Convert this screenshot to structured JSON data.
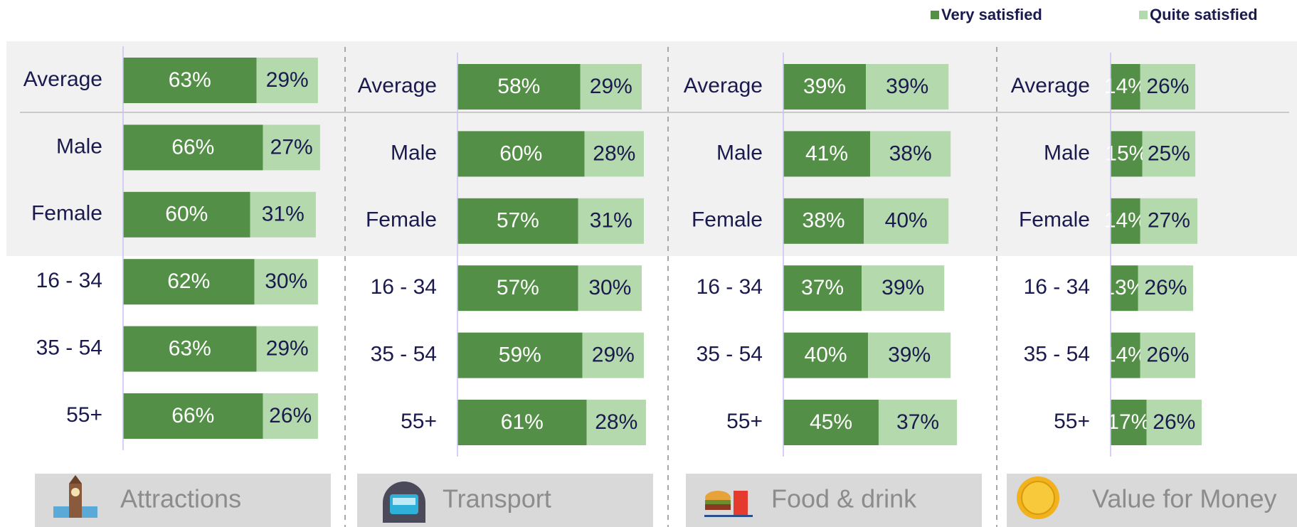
{
  "chart_data": [
    {
      "type": "stacked_bar_horizontal",
      "title": "Attractions",
      "categories": [
        "Average",
        "Male",
        "Female",
        "16 - 34",
        "35 - 54",
        "55+"
      ],
      "xlim": [
        0,
        100
      ],
      "series": [
        {
          "name": "Very satisfied",
          "color": "#548f47",
          "values": [
            63,
            66,
            60,
            62,
            63,
            66
          ],
          "value_labels": [
            "63%",
            "66%",
            "60%",
            "62%",
            "63%",
            "66%"
          ]
        },
        {
          "name": "Quite satisfied",
          "color": "#b4d9ac",
          "values": [
            29,
            27,
            31,
            30,
            29,
            26
          ],
          "value_labels": [
            "29%",
            "27%",
            "31%",
            "30%",
            "29%",
            "26%"
          ]
        }
      ]
    },
    {
      "type": "stacked_bar_horizontal",
      "title": "Transport",
      "categories": [
        "Average",
        "Male",
        "Female",
        "16 - 34",
        "35 - 54",
        "55+"
      ],
      "xlim": [
        0,
        100
      ],
      "series": [
        {
          "color": "#548f47",
          "values": [
            58,
            60,
            57,
            57,
            59,
            61
          ],
          "value_labels": [
            "58%",
            "60%",
            "57%",
            "57%",
            "59%",
            "61%"
          ]
        },
        {
          "color": "#b4d9ac",
          "values": [
            29,
            28,
            31,
            30,
            29,
            28
          ],
          "value_labels": [
            "29%",
            "28%",
            "31%",
            "30%",
            "29%",
            "28%"
          ]
        }
      ]
    },
    {
      "type": "stacked_bar_horizontal",
      "title": "Food & drink",
      "categories": [
        "Average",
        "Male",
        "Female",
        "16 - 34",
        "35 - 54",
        "55+"
      ],
      "xlim": [
        0,
        100
      ],
      "series": [
        {
          "color": "#548f47",
          "values": [
            39,
            41,
            38,
            37,
            40,
            45
          ],
          "value_labels": [
            "39%",
            "41%",
            "38%",
            "37%",
            "40%",
            "45%"
          ]
        },
        {
          "color": "#b4d9ac",
          "values": [
            39,
            38,
            40,
            39,
            39,
            37
          ],
          "value_labels": [
            "39%",
            "38%",
            "40%",
            "39%",
            "39%",
            "37%"
          ]
        }
      ]
    },
    {
      "type": "stacked_bar_horizontal",
      "title": "Value for Money",
      "categories": [
        "Average",
        "Male",
        "Female",
        "16 - 34",
        "35 - 54",
        "55+"
      ],
      "xlim": [
        0,
        100
      ],
      "series": [
        {
          "color": "#548f47",
          "values": [
            14,
            15,
            14,
            13,
            14,
            17
          ],
          "value_labels": [
            "14%",
            "15%",
            "14%",
            "13%",
            "14%",
            "17%"
          ]
        },
        {
          "color": "#b4d9ac",
          "values": [
            26,
            25,
            27,
            26,
            26,
            26
          ],
          "value_labels": [
            "26%",
            "25%",
            "27%",
            "26%",
            "26%",
            "26%"
          ]
        }
      ]
    }
  ]
}
